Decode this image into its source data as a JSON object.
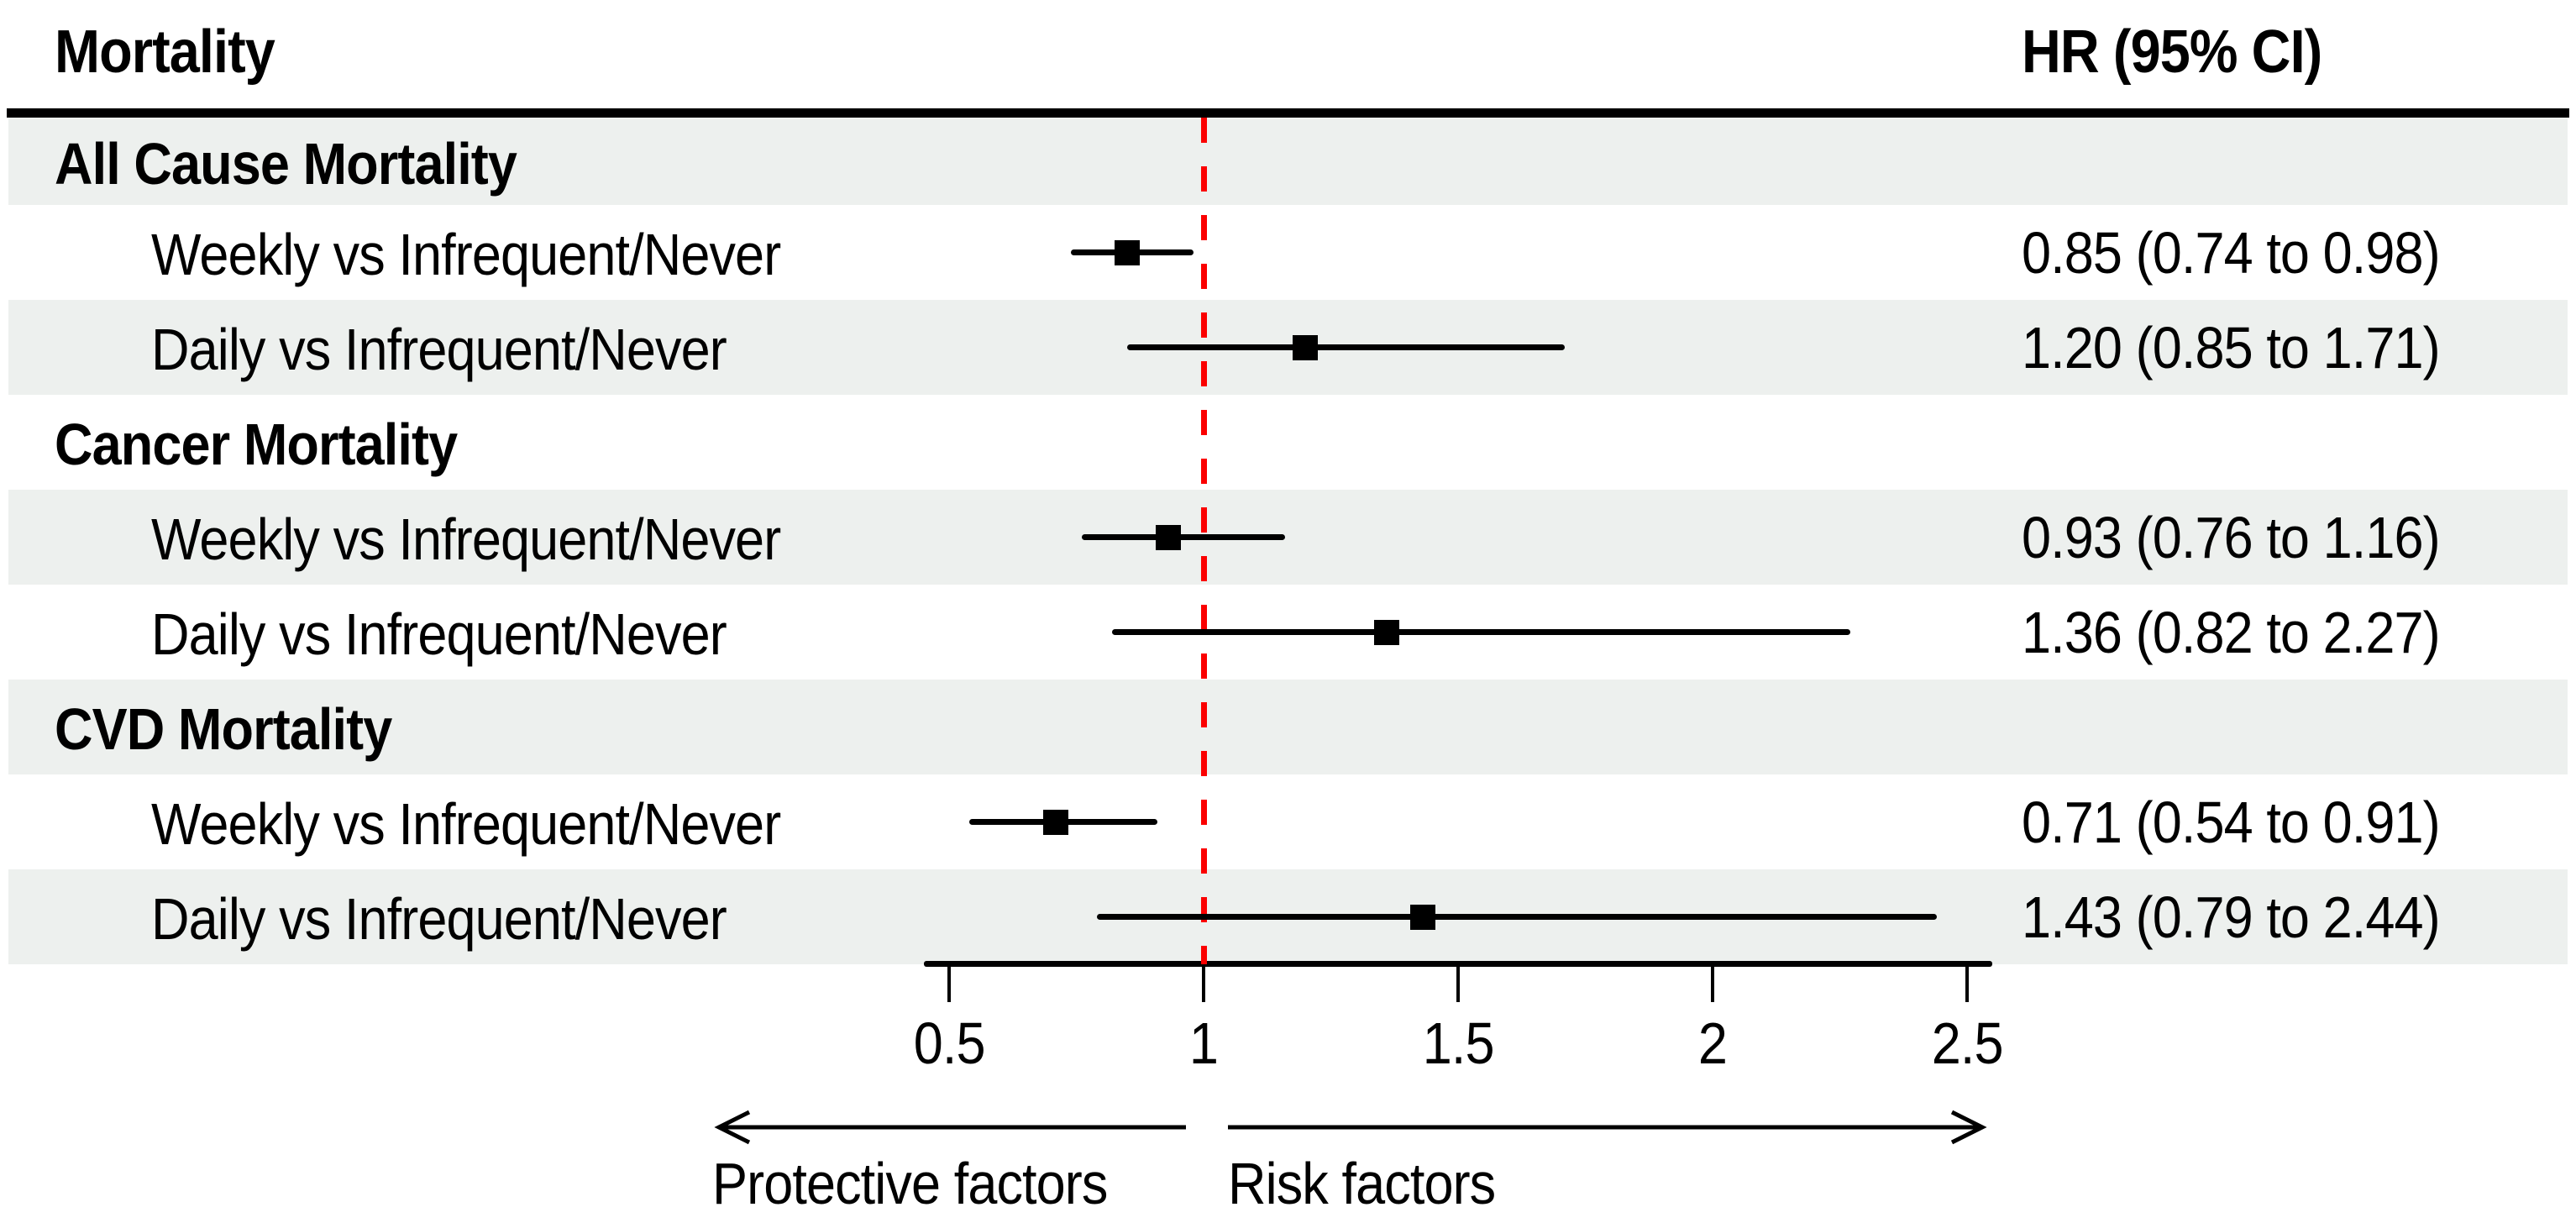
{
  "header": {
    "left": "Mortality",
    "right": "HR (95% CI)"
  },
  "colors": {
    "background": "#ffffff",
    "band": "#edf0ee",
    "reference_line": "#fb0000",
    "ink": "#000000"
  },
  "annotations": {
    "left_arrow_label": "Protective factors",
    "right_arrow_label": "Risk factors"
  },
  "chart_data": {
    "type": "scatter",
    "subtype": "forest-plot",
    "title": "Mortality",
    "value_column_label": "HR (95% CI)",
    "xlabel": "",
    "reference_line": 1,
    "x_range": [
      0.45,
      2.55
    ],
    "x_ticks": [
      {
        "v": 0.5,
        "label": "0.5"
      },
      {
        "v": 1,
        "label": "1"
      },
      {
        "v": 1.5,
        "label": "1.5"
      },
      {
        "v": 2,
        "label": "2"
      },
      {
        "v": 2.5,
        "label": "2.5"
      }
    ],
    "grid": false,
    "legend": "none",
    "groups": [
      {
        "label": "All Cause Mortality",
        "rows": [
          {
            "label": "Weekly vs Infrequent/Never",
            "hr": 0.85,
            "ci_low": 0.74,
            "ci_high": 0.98,
            "text": "0.85 (0.74 to 0.98)"
          },
          {
            "label": "Daily vs Infrequent/Never",
            "hr": 1.2,
            "ci_low": 0.85,
            "ci_high": 1.71,
            "text": "1.20 (0.85 to 1.71)"
          }
        ]
      },
      {
        "label": "Cancer Mortality",
        "rows": [
          {
            "label": "Weekly vs Infrequent/Never",
            "hr": 0.93,
            "ci_low": 0.76,
            "ci_high": 1.16,
            "text": "0.93 (0.76 to 1.16)"
          },
          {
            "label": "Daily vs Infrequent/Never",
            "hr": 1.36,
            "ci_low": 0.82,
            "ci_high": 2.27,
            "text": "1.36 (0.82 to 2.27)"
          }
        ]
      },
      {
        "label": "CVD Mortality",
        "rows": [
          {
            "label": "Weekly vs Infrequent/Never",
            "hr": 0.71,
            "ci_low": 0.54,
            "ci_high": 0.91,
            "text": "0.71 (0.54 to 0.91)"
          },
          {
            "label": "Daily vs Infrequent/Never",
            "hr": 1.43,
            "ci_low": 0.79,
            "ci_high": 2.44,
            "text": "1.43 (0.79 to 2.44)"
          }
        ]
      }
    ]
  }
}
